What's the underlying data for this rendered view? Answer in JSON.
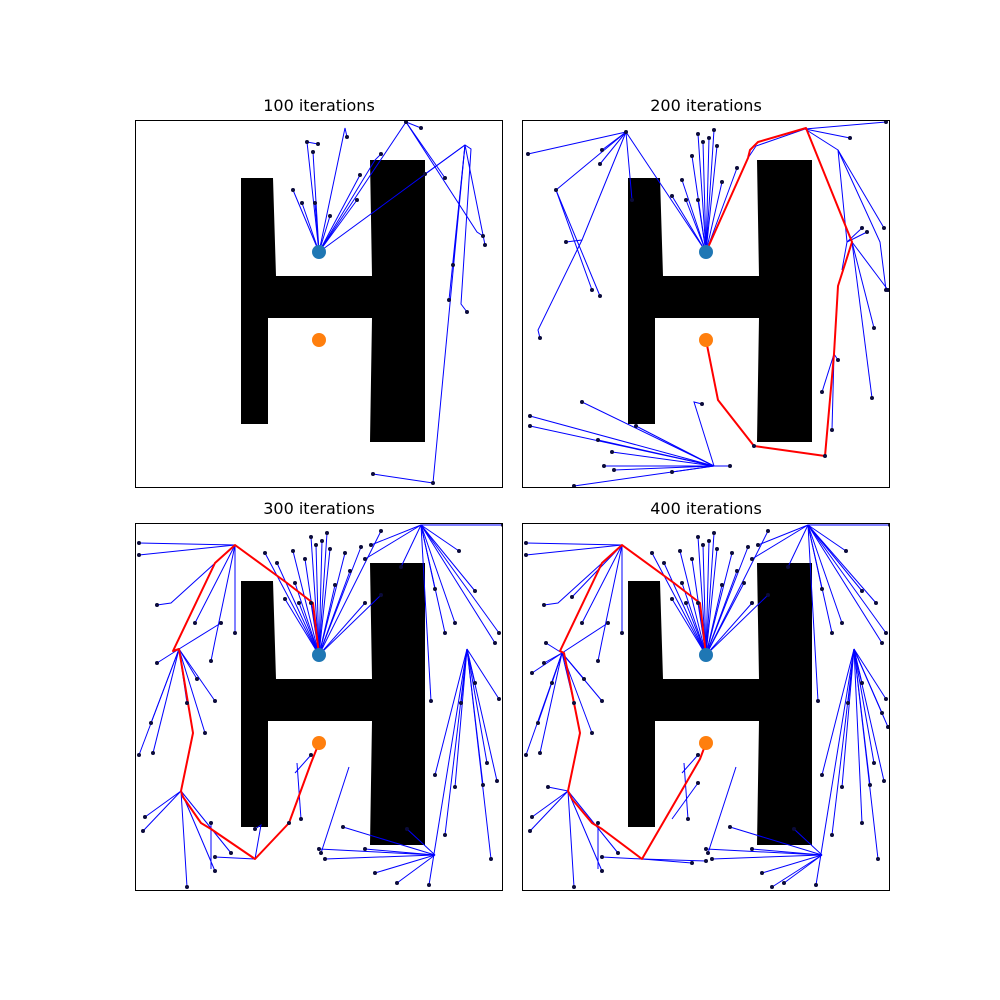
{
  "figure": {
    "panels": [
      {
        "title": "100 iterations",
        "iterations": 100,
        "path_found": false
      },
      {
        "title": "200 iterations",
        "iterations": 200,
        "path_found": true
      },
      {
        "title": "300 iterations",
        "iterations": 300,
        "path_found": true
      },
      {
        "title": "400 iterations",
        "iterations": 400,
        "path_found": true
      }
    ],
    "colors": {
      "tree_edge": "#0000ff",
      "node": "#0b0b3b",
      "path": "#ff0000",
      "start": "#1f77b4",
      "goal": "#ff7f0e",
      "obstacle": "#000000"
    },
    "legend": "none",
    "grid": false
  }
}
